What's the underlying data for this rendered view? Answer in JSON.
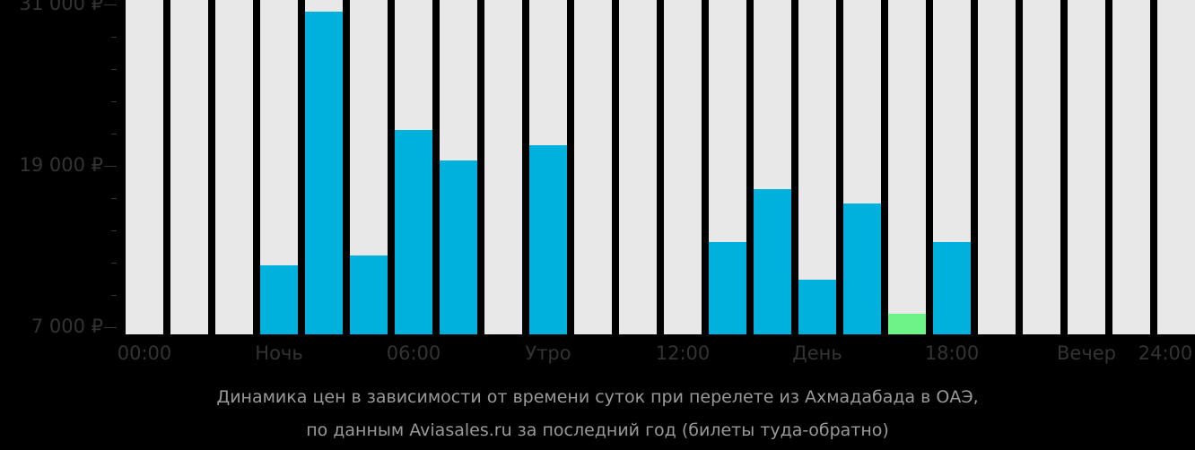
{
  "chart_data": {
    "type": "bar",
    "title": "Динамика цен в зависимости от времени суток при перелете из Ахмадабада в ОАЭ, по данным Aviasales.ru за последний год (билеты туда-обратно)",
    "xlabel": "",
    "ylabel": "",
    "ylim": [
      6470,
      31500
    ],
    "yticks": [
      "31 000 ₽",
      "19 000 ₽",
      "7 000 ₽"
    ],
    "ytick_values": [
      31000,
      19000,
      7000
    ],
    "xtick_labels": [
      "00:00",
      "Ночь",
      "06:00",
      "Утро",
      "12:00",
      "День",
      "18:00",
      "Вечер",
      "24:00"
    ],
    "categories": [
      "00",
      "01",
      "02",
      "03",
      "04",
      "05",
      "06",
      "07",
      "08",
      "09",
      "10",
      "11",
      "12",
      "13",
      "14",
      "15",
      "16",
      "17",
      "18",
      "19",
      "20",
      "21",
      "22",
      "23"
    ],
    "values": [
      null,
      null,
      null,
      11600,
      30470,
      12330,
      21670,
      19400,
      null,
      20530,
      null,
      null,
      null,
      13330,
      17270,
      10530,
      16200,
      8000,
      13330,
      null,
      null,
      null,
      null,
      null
    ],
    "highlight": {
      "index": 17,
      "color": "#6cf487",
      "label": "cheapest"
    },
    "colors": {
      "bar": "#00b0dd",
      "empty": "#e8e8e8",
      "cheapest": "#6cf487",
      "background": "#000000"
    },
    "grid": false,
    "legend": null
  },
  "caption": {
    "line1": "Динамика цен в зависимости от времени суток при перелете из Ахмадабада в ОАЭ,",
    "line2": "по данным Aviasales.ru за последний год (билеты туда-обратно)"
  }
}
